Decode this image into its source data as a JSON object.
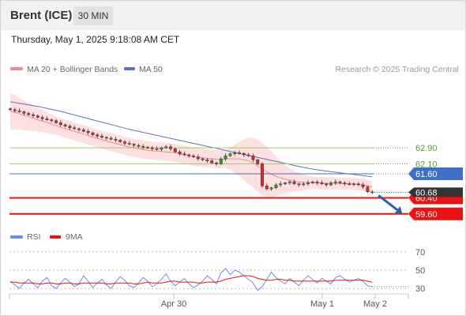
{
  "header": {
    "symbol": "Brent (ICE)",
    "timeframe": "30 MIN"
  },
  "datetime": "Thursday, May 1, 2025 9:18:08 AM CET",
  "copyright": "Research © 2025 Trading Central",
  "colors": {
    "resistance": "#9acd6e",
    "pivot": "#3f6fc7",
    "support": "#ee1111",
    "price_tag": "#333333",
    "ma20": "#f08b8b",
    "ma50": "#5a76b8",
    "bollinger_fill": "#fde0e0",
    "candle_up": "#2a9d2a",
    "candle_down": "#d42a2a",
    "rsi": "#6b8fe0",
    "rsi_ma": "#ee1111",
    "arrow": "#2f5ea8"
  },
  "chart_data": [
    {
      "type": "candlestick",
      "legend": [
        {
          "name": "MA 20 + Bollinger Bands",
          "color": "#f08b8b"
        },
        {
          "name": "MA 50",
          "color": "#5a76b8"
        }
      ],
      "x_ticks": [
        "Apr 30",
        "May 1",
        "May 2"
      ],
      "levels": [
        {
          "value": 62.9,
          "label": "62.90",
          "kind": "resistance"
        },
        {
          "value": 62.1,
          "label": "62.10",
          "kind": "resistance"
        },
        {
          "value": 61.6,
          "label": "61.60",
          "kind": "pivot"
        },
        {
          "value": 60.4,
          "label": "60.40",
          "kind": "support"
        },
        {
          "value": 59.6,
          "label": "59.60",
          "kind": "support"
        }
      ],
      "last_price_label": "60.68",
      "close": [
        64.8,
        64.75,
        64.7,
        64.62,
        64.55,
        64.5,
        64.42,
        64.35,
        64.3,
        64.25,
        64.15,
        64.05,
        63.98,
        63.9,
        63.85,
        63.8,
        63.72,
        63.65,
        63.55,
        63.48,
        63.42,
        63.38,
        63.33,
        63.28,
        63.2,
        63.12,
        63.08,
        63.02,
        62.97,
        62.93,
        62.9,
        62.85,
        62.82,
        62.9,
        62.95,
        62.85,
        62.7,
        62.6,
        62.55,
        62.5,
        62.45,
        62.35,
        62.3,
        62.25,
        62.15,
        62.1,
        62.35,
        62.5,
        62.6,
        62.65,
        62.62,
        62.55,
        62.5,
        62.3,
        62.1,
        61.0,
        60.85,
        60.9,
        61.05,
        61.1,
        61.15,
        61.2,
        61.1,
        61.05,
        61.1,
        61.15,
        61.2,
        61.15,
        61.1,
        61.05,
        61.15,
        61.2,
        61.15,
        61.1,
        61.08,
        61.1,
        61.05,
        60.95,
        60.7,
        60.68
      ],
      "ma20": [
        64.72,
        64.68,
        64.6,
        64.52,
        64.45,
        64.38,
        64.3,
        64.23,
        64.16,
        64.08,
        64.0,
        63.93,
        63.86,
        63.79,
        63.72,
        63.65,
        63.58,
        63.51,
        63.44,
        63.37,
        63.3,
        63.24,
        63.18,
        63.12,
        63.06,
        63.0,
        62.95,
        62.9,
        62.86,
        62.82,
        62.78,
        62.75,
        62.73,
        62.72,
        62.7,
        62.68,
        62.65,
        62.6,
        62.55,
        62.5,
        62.45,
        62.42,
        62.4,
        62.38,
        62.35,
        62.33,
        62.33,
        62.34,
        62.35,
        62.35,
        62.34,
        62.3,
        62.25,
        62.15,
        62.0,
        61.85,
        61.7,
        61.58,
        61.48,
        61.4,
        61.33,
        61.28,
        61.23,
        61.2,
        61.18,
        61.17,
        61.16,
        61.15,
        61.14,
        61.13,
        61.13,
        61.12,
        61.12,
        61.11,
        61.11,
        61.1,
        61.08,
        61.05,
        61.0,
        60.95
      ],
      "ma50": [
        65.2,
        65.16,
        65.12,
        65.08,
        65.04,
        65.0,
        64.96,
        64.92,
        64.87,
        64.82,
        64.77,
        64.72,
        64.66,
        64.6,
        64.54,
        64.48,
        64.42,
        64.36,
        64.3,
        64.24,
        64.18,
        64.12,
        64.06,
        64.0,
        63.94,
        63.88,
        63.82,
        63.77,
        63.72,
        63.67,
        63.62,
        63.57,
        63.52,
        63.47,
        63.42,
        63.37,
        63.32,
        63.27,
        63.22,
        63.17,
        63.12,
        63.07,
        63.02,
        62.97,
        62.92,
        62.87,
        62.82,
        62.77,
        62.72,
        62.67,
        62.62,
        62.57,
        62.52,
        62.47,
        62.42,
        62.37,
        62.32,
        62.27,
        62.22,
        62.17,
        62.12,
        62.07,
        62.02,
        61.97,
        61.92,
        61.88,
        61.84,
        61.8,
        61.77,
        61.74,
        61.71,
        61.68,
        61.65,
        61.62,
        61.6,
        61.57,
        61.54,
        61.51,
        61.48,
        61.45
      ],
      "bb_width": [
        0.9,
        0.85,
        0.8,
        0.75,
        0.7,
        0.65,
        0.6,
        0.55,
        0.5,
        0.5,
        0.45,
        0.45,
        0.45,
        0.45,
        0.45,
        0.45,
        0.45,
        0.45,
        0.45,
        0.45,
        0.45,
        0.45,
        0.45,
        0.45,
        0.45,
        0.45,
        0.45,
        0.45,
        0.45,
        0.45,
        0.45,
        0.45,
        0.45,
        0.45,
        0.45,
        0.45,
        0.45,
        0.45,
        0.45,
        0.45,
        0.45,
        0.45,
        0.45,
        0.45,
        0.45,
        0.45,
        0.45,
        0.45,
        0.55,
        0.7,
        0.85,
        1.0,
        1.15,
        1.25,
        1.3,
        1.3,
        1.25,
        1.15,
        1.0,
        0.85,
        0.7,
        0.6,
        0.5,
        0.45,
        0.4,
        0.35,
        0.3,
        0.3,
        0.3,
        0.3,
        0.3,
        0.3,
        0.3,
        0.3,
        0.3,
        0.3,
        0.3,
        0.3,
        0.3,
        0.3
      ],
      "y_range": [
        59.0,
        65.9
      ],
      "grid": false
    },
    {
      "type": "line",
      "legend": [
        {
          "name": "RSI",
          "color": "#6b8fe0"
        },
        {
          "name": "9MA",
          "color": "#ee1111"
        }
      ],
      "y_ticks": [
        70,
        50,
        30
      ],
      "y_range": [
        25,
        75
      ],
      "rsi": [
        38,
        34,
        30,
        36,
        40,
        35,
        31,
        38,
        42,
        33,
        30,
        36,
        41,
        37,
        32,
        35,
        44,
        38,
        31,
        36,
        40,
        34,
        30,
        37,
        43,
        39,
        33,
        31,
        36,
        42,
        38,
        32,
        35,
        40,
        46,
        38,
        33,
        37,
        41,
        35,
        31,
        34,
        38,
        44,
        40,
        35,
        47,
        52,
        45,
        50,
        48,
        44,
        40,
        36,
        28,
        32,
        40,
        48,
        42,
        38,
        35,
        41,
        37,
        33,
        39,
        44,
        40,
        36,
        41,
        38,
        35,
        42,
        44,
        40,
        37,
        39,
        41,
        38,
        33,
        32
      ],
      "rsi_ma": [
        37,
        37,
        36,
        36,
        36,
        36,
        35,
        35,
        36,
        36,
        35,
        35,
        36,
        36,
        35,
        35,
        36,
        36,
        36,
        36,
        36,
        35,
        35,
        36,
        36,
        36,
        36,
        35,
        35,
        36,
        37,
        36,
        36,
        36,
        37,
        38,
        38,
        37,
        37,
        37,
        37,
        36,
        36,
        37,
        37,
        37,
        38,
        40,
        41,
        42,
        43,
        44,
        44,
        43,
        41,
        40,
        39,
        39,
        40,
        40,
        39,
        39,
        38,
        38,
        38,
        38,
        38,
        38,
        38,
        38,
        38,
        39,
        39,
        39,
        39,
        39,
        39,
        39,
        38,
        37
      ],
      "grid": true
    }
  ]
}
